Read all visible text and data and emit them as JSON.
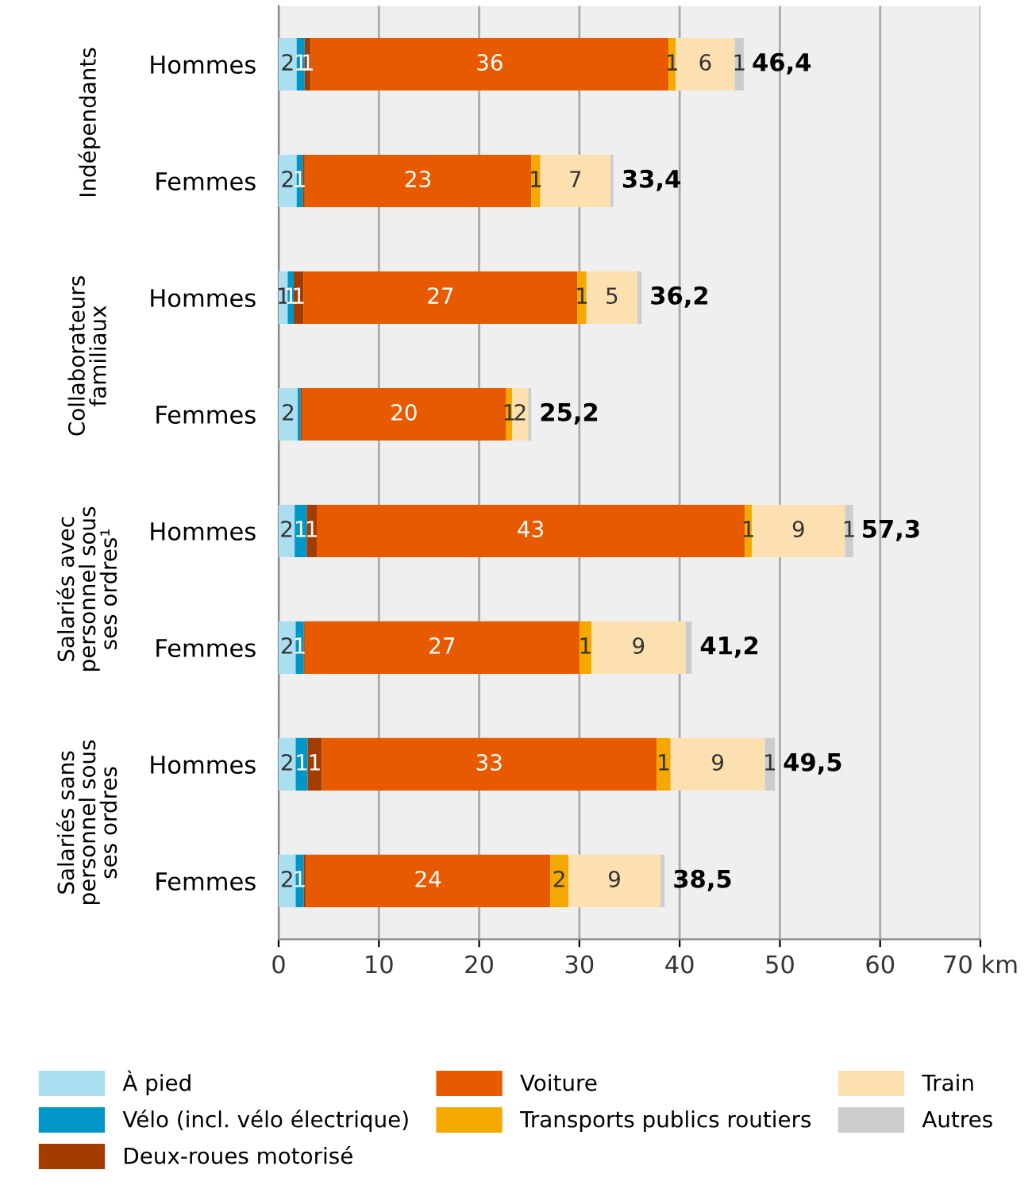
{
  "chart_data": {
    "type": "bar",
    "orientation": "horizontal",
    "stacked": true,
    "categories": [
      "Hommes",
      "Femmes",
      "Hommes",
      "Femmes",
      "Hommes",
      "Femmes",
      "Hommes",
      "Femmes"
    ],
    "annotations": [
      "Indépendants",
      "Collaborateurs familiaux",
      "Salariés avec personnel sous ses ordres¹",
      "Salariés sans personnel sous ses ordres"
    ],
    "series": [
      {
        "name": "À pied",
        "color": "#aadff2",
        "values": [
          1.8,
          1.8,
          0.9,
          1.9,
          1.6,
          1.7,
          1.7,
          1.7
        ],
        "value_labels": [
          "2",
          "2",
          "1",
          "2",
          "2",
          "2",
          "2",
          "2"
        ]
      },
      {
        "name": "Vélo (incl. vélo électrique)",
        "color": "#0096c8",
        "values": [
          0.8,
          0.6,
          0.6,
          0.3,
          1.2,
          0.8,
          1.2,
          0.8
        ],
        "value_labels": [
          "1",
          "1",
          "1",
          null,
          "1",
          "1",
          "1",
          "1"
        ]
      },
      {
        "name": "Deux-roues motorisé",
        "color": "#a33c00",
        "values": [
          0.6,
          0.2,
          1.0,
          0.1,
          1.0,
          0.1,
          1.4,
          0.2
        ],
        "value_labels": [
          "1",
          null,
          "1",
          null,
          "1",
          null,
          "1",
          null
        ]
      },
      {
        "name": "Voiture",
        "color": "#e85a00",
        "values": [
          35.7,
          22.6,
          27.3,
          20.4,
          42.7,
          27.4,
          33.4,
          24.4
        ],
        "value_labels": [
          "36",
          "23",
          "27",
          "20",
          "43",
          "27",
          "33",
          "24"
        ]
      },
      {
        "name": "Transports publics routiers",
        "color": "#f5a800",
        "values": [
          0.7,
          0.9,
          0.9,
          0.6,
          0.7,
          1.2,
          1.4,
          1.8
        ],
        "value_labels": [
          "1",
          "1",
          "1",
          "1",
          "1",
          "1",
          "1",
          "2"
        ]
      },
      {
        "name": "Train",
        "color": "#fde0b0",
        "values": [
          5.9,
          7.0,
          5.1,
          1.6,
          9.3,
          9.4,
          9.4,
          9.2
        ],
        "value_labels": [
          "6",
          "7",
          "5",
          "2",
          "9",
          "9",
          "9",
          "9"
        ]
      },
      {
        "name": "Autres",
        "color": "#cccccc",
        "values": [
          0.9,
          0.3,
          0.4,
          0.3,
          0.8,
          0.6,
          1.0,
          0.4
        ],
        "value_labels": [
          "1",
          null,
          null,
          null,
          "1",
          null,
          "1",
          null
        ]
      }
    ],
    "totals": [
      "46,4",
      "33,4",
      "36,2",
      "25,2",
      "57,3",
      "41,2",
      "49,5",
      "38,5"
    ],
    "xlim": [
      0,
      70
    ],
    "xticks": [
      0,
      10,
      20,
      30,
      40,
      50,
      60,
      {
        "value": 70,
        "label": "70 km"
      }
    ],
    "grid": "x",
    "legend": "bottom"
  }
}
